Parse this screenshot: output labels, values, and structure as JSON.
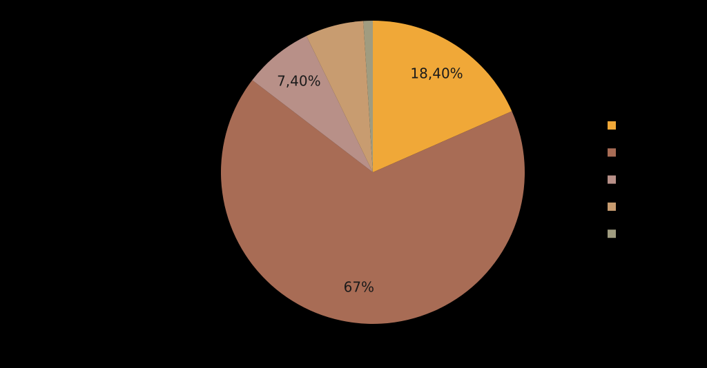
{
  "chart_data": {
    "type": "pie",
    "categories": [
      null,
      null,
      null,
      null,
      null
    ],
    "values": [
      18.4,
      67,
      7.4,
      6.2,
      1.0
    ],
    "value_labels": [
      "18,40%",
      "67%",
      "7,40%",
      null,
      null
    ],
    "colors": [
      "#f0a838",
      "#a86c55",
      "#b89088",
      "#c89c70",
      "#a09c80"
    ],
    "legend": "right"
  }
}
